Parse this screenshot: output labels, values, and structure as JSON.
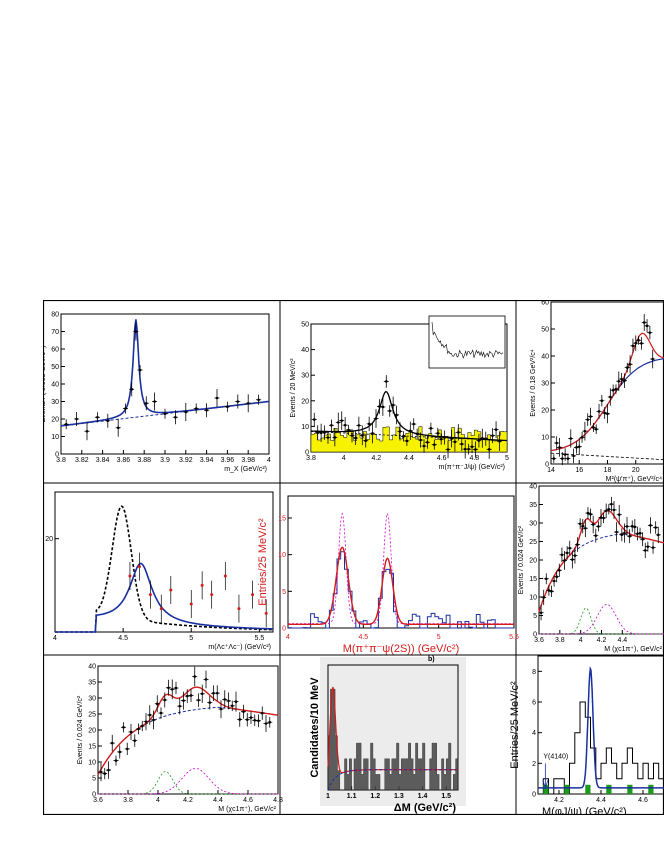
{
  "chart_data": [
    {
      "id": "p1",
      "type": "scatter",
      "xlabel": "m_X (GeV/c²)",
      "ylabel": "Events / ( 0.005 GeV/c² )",
      "xlim": [
        3.8,
        4.0
      ],
      "ylim": [
        0,
        80
      ],
      "xticks": [
        "3.8",
        "3.82",
        "3.84",
        "3.86",
        "3.88",
        "3.9",
        "3.92",
        "3.94",
        "3.96",
        "3.98",
        "4"
      ],
      "yticks": [
        "0",
        "10",
        "20",
        "30",
        "40",
        "50",
        "60",
        "70",
        "80"
      ],
      "points": [
        [
          3.805,
          17
        ],
        [
          3.815,
          20
        ],
        [
          3.825,
          13
        ],
        [
          3.835,
          21
        ],
        [
          3.845,
          19
        ],
        [
          3.855,
          15
        ],
        [
          3.862,
          26
        ],
        [
          3.868,
          37
        ],
        [
          3.872,
          70
        ],
        [
          3.876,
          48
        ],
        [
          3.882,
          29
        ],
        [
          3.89,
          30
        ],
        [
          3.9,
          23
        ],
        [
          3.91,
          21
        ],
        [
          3.92,
          24
        ],
        [
          3.93,
          26
        ],
        [
          3.94,
          25
        ],
        [
          3.95,
          32
        ],
        [
          3.96,
          27
        ],
        [
          3.97,
          30
        ],
        [
          3.98,
          29
        ],
        [
          3.99,
          31
        ]
      ],
      "fit_peak": 3.872,
      "fit_height": 77
    },
    {
      "id": "p2",
      "type": "histogram",
      "xlabel": "m(π⁺π⁻J/ψ) (GeV/c²)",
      "ylabel": "Events / 20 MeV/c²",
      "xlim": [
        3.8,
        5.0
      ],
      "ylim": [
        0,
        50
      ],
      "xticks": [
        "3.8",
        "4",
        "4.2",
        "4.4",
        "4.6",
        "4.8",
        "5"
      ],
      "yticks": [
        "0",
        "10",
        "20",
        "30",
        "40",
        "50"
      ],
      "peak": 4.26,
      "peak_height": 30
    },
    {
      "id": "p3",
      "type": "scatter",
      "xlabel": "M²(ψ′π⁺), GeV²/c⁴",
      "ylabel": "Events / 0.18 GeV²/c⁴",
      "xlim": [
        14,
        22
      ],
      "ylim": [
        0,
        60
      ],
      "xticks": [
        "14",
        "16",
        "18",
        "20"
      ],
      "yticks": [
        "0",
        "10",
        "20",
        "30",
        "40",
        "50",
        "60"
      ]
    },
    {
      "id": "p4",
      "type": "line",
      "xlabel": "m(Λc⁺Λc⁻) (GeV/c²)",
      "ylabel": "",
      "xlim": [
        4.0,
        5.6
      ],
      "ylim": [
        0,
        30
      ],
      "xticks": [
        "4",
        "4.5",
        "5",
        "5.5"
      ],
      "yticks": [
        "20"
      ],
      "peak": 4.63
    },
    {
      "id": "p5",
      "type": "histogram",
      "xlabel": "M(π⁺π⁻ψ(2S)) (GeV/c²)",
      "ylabel": "Entries/25 MeV/c²",
      "xlim": [
        4.0,
        5.5
      ],
      "ylim": [
        0,
        18
      ],
      "xticks": [
        "4",
        "4.5",
        "5",
        "5.5"
      ],
      "yticks": [
        "0",
        "5",
        "10",
        "15"
      ],
      "peaks": [
        4.36,
        4.66
      ]
    },
    {
      "id": "p6",
      "type": "scatter",
      "xlabel": "M (χc1π⁺), GeV/c²",
      "ylabel": "Events / 0.024 GeV/c²",
      "xlim": [
        3.6,
        4.8
      ],
      "ylim": [
        0,
        40
      ],
      "xticks": [
        "3.6",
        "3.8",
        "4",
        "4.2",
        "4.4"
      ],
      "yticks": [
        "0",
        "5",
        "10",
        "15",
        "20",
        "25",
        "30",
        "35",
        "40"
      ]
    },
    {
      "id": "p7",
      "type": "scatter",
      "xlabel": "M (χc1π⁺), GeV/c²",
      "ylabel": "Events / 0.024 GeV/c²",
      "xlim": [
        3.6,
        4.8
      ],
      "ylim": [
        0,
        40
      ],
      "xticks": [
        "3.6",
        "3.8",
        "4",
        "4.2",
        "4.4",
        "4.6",
        "4.8"
      ],
      "yticks": [
        "0",
        "5",
        "10",
        "15",
        "20",
        "25",
        "30",
        "35",
        "40"
      ]
    },
    {
      "id": "p8",
      "type": "histogram",
      "xlabel": "ΔM  (GeV/c²)",
      "ylabel": "Candidates/10 MeV",
      "xlim": [
        1.0,
        1.55
      ],
      "ylim": [
        0,
        8
      ],
      "xticks": [
        "1",
        "1.1",
        "1.2",
        "1.3",
        "1.4",
        "1.5"
      ],
      "panel_label": "b)"
    },
    {
      "id": "p9",
      "type": "histogram",
      "xlabel": "M(φJ/ψ) (GeV/c²)",
      "ylabel": "Entries/25 MeV/c²",
      "xlim": [
        4.1,
        4.7
      ],
      "ylim": [
        0,
        9
      ],
      "xticks": [
        "4.2",
        "4.4",
        "4.6"
      ],
      "yticks": [
        "0",
        "2",
        "4",
        "6",
        "8"
      ],
      "annotation": "Y(4140)",
      "peak": 4.35
    }
  ]
}
